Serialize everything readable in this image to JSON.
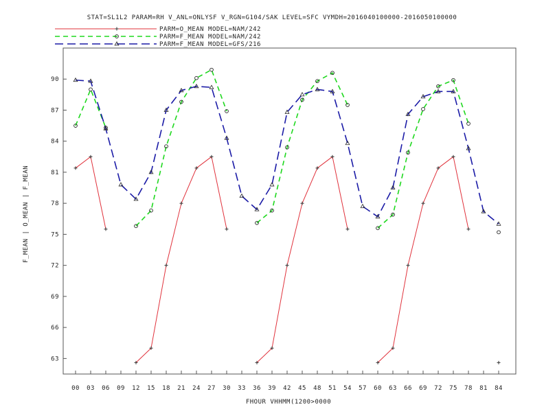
{
  "chart_data": {
    "type": "line",
    "title": "STAT=SL1L2 PARAM=RH V_ANL=ONLYSF V_RGN=G104/SAK LEVEL=SFC VYMDH=2016040100000-2016050100000",
    "xlabel": "FHOUR VHHMM(1200>0000",
    "ylabel": "F_MEAN | O_MEAN | F_MEAN",
    "categories": [
      "00",
      "03",
      "06",
      "09",
      "12",
      "15",
      "18",
      "21",
      "24",
      "27",
      "30",
      "33",
      "36",
      "39",
      "42",
      "45",
      "48",
      "51",
      "54",
      "57",
      "60",
      "63",
      "66",
      "69",
      "72",
      "75",
      "78",
      "81",
      "84"
    ],
    "ylim": [
      61.5,
      93
    ],
    "yticks": [
      63,
      66,
      69,
      72,
      75,
      78,
      81,
      84,
      87,
      90
    ],
    "grid": false,
    "legend_position": "top-left",
    "series": [
      {
        "name": "PARM=O_MEAN MODEL=NAM/242",
        "color": "#e0303a",
        "dash": "solid",
        "marker": "plus",
        "values": [
          81.4,
          82.5,
          75.5,
          null,
          62.6,
          64.0,
          72.0,
          78.0,
          81.4,
          82.5,
          75.5,
          null,
          62.6,
          64.0,
          72.0,
          78.0,
          81.4,
          82.5,
          75.5,
          null,
          62.6,
          64.0,
          72.0,
          78.0,
          81.4,
          82.5,
          75.5,
          null,
          62.6
        ]
      },
      {
        "name": "PARM=F_MEAN MODEL=NAM/242",
        "color": "#1ed81e",
        "dash": "dashed",
        "marker": "circle",
        "values": [
          85.5,
          89.0,
          85.3,
          null,
          75.8,
          77.3,
          83.5,
          87.8,
          90.1,
          90.9,
          86.9,
          null,
          76.1,
          77.3,
          83.4,
          88.0,
          89.8,
          90.6,
          87.5,
          null,
          75.6,
          76.9,
          82.9,
          87.1,
          89.3,
          89.9,
          85.7,
          null,
          75.2
        ]
      },
      {
        "name": "PARM=F_MEAN MODEL=GFS/216",
        "color": "#1a1aa6",
        "dash": "longdash",
        "marker": "triangle",
        "values": [
          89.9,
          89.8,
          85.2,
          79.8,
          78.4,
          81.0,
          87.0,
          88.9,
          89.3,
          89.2,
          84.3,
          78.7,
          77.4,
          79.8,
          86.8,
          88.5,
          89.0,
          88.8,
          83.8,
          77.7,
          76.7,
          79.5,
          86.6,
          88.3,
          88.8,
          88.8,
          83.3,
          77.2,
          76.0
        ]
      }
    ]
  }
}
